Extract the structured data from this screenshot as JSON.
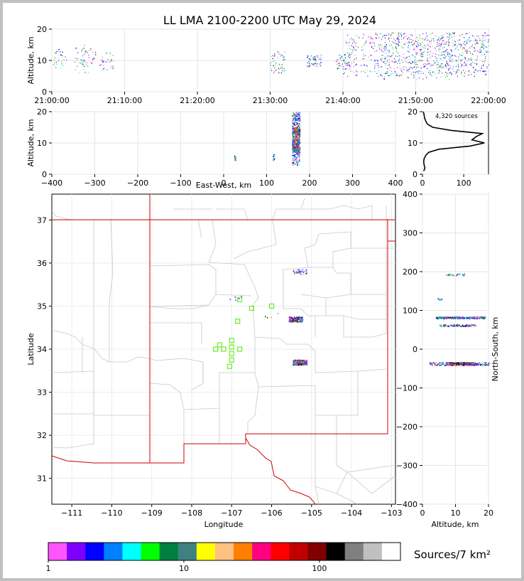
{
  "title": "LL LMA 2100-2200 UTC May 29, 2024",
  "colorbar_label": "Sources/7 km²",
  "colorbar_ticks": [
    "1",
    "10",
    "100"
  ],
  "colorbar_colors": [
    "#ff55ff",
    "#8000ff",
    "#0000ff",
    "#0080ff",
    "#00ffff",
    "#00ff00",
    "#008040",
    "#408080",
    "#ffff00",
    "#ffc080",
    "#ff8000",
    "#ff0080",
    "#ff0000",
    "#c00000",
    "#800000",
    "#000000",
    "#808080",
    "#c0c0c0",
    "#ffffff"
  ],
  "panels": {
    "time_height": {
      "ylabel": "Altitude, km",
      "yticks": [
        "0",
        "10",
        "20"
      ],
      "xticks": [
        "21:00:00",
        "21:10:00",
        "21:20:00",
        "21:30:00",
        "21:40:00",
        "21:50:00",
        "22:00:00"
      ]
    },
    "ew_height": {
      "ylabel": "Altitude, km",
      "xlabel": "East-West, km",
      "yticks": [
        "0",
        "10",
        "20"
      ],
      "xticks": [
        "−400",
        "−300",
        "−200",
        "−100",
        "0",
        "100",
        "200",
        "300",
        "400"
      ]
    },
    "histogram": {
      "annotation": "4,320 sources",
      "xticks": [
        "0",
        "100"
      ],
      "yticks": [
        "0",
        "10",
        "20"
      ]
    },
    "plan": {
      "xlabel": "Longitude",
      "ylabel": "Latitude",
      "xticks": [
        "−111",
        "−110",
        "−109",
        "−108",
        "−107",
        "−106",
        "−105",
        "−104",
        "−103"
      ],
      "yticks": [
        "31",
        "32",
        "33",
        "34",
        "35",
        "36",
        "37"
      ]
    },
    "ns_height": {
      "xlabel": "Altitude, km",
      "ylabel": "North-South, km",
      "xticks": [
        "0",
        "10",
        "20"
      ],
      "yticks": [
        "−400",
        "−300",
        "−200",
        "−100",
        "0",
        "100",
        "200",
        "300",
        "400"
      ]
    }
  },
  "chart_data": [
    {
      "type": "scatter",
      "name": "time-height",
      "x_range": [
        "21:00:00",
        "22:00:00"
      ],
      "y_range": [
        0,
        20
      ],
      "clusters": [
        {
          "t_min": 1,
          "alt_km": [
            7,
            14
          ]
        },
        {
          "t_min": 4,
          "alt_km": [
            6,
            15
          ]
        },
        {
          "t_min": 5,
          "alt_km": [
            8,
            14
          ]
        },
        {
          "t_min": 7.5,
          "alt_km": [
            7,
            13
          ]
        },
        {
          "t_min": 31,
          "alt_km": [
            6,
            13
          ]
        },
        {
          "t_min": 36,
          "alt_km": [
            8,
            12
          ]
        },
        {
          "t_min": 40,
          "alt_km": [
            7,
            12
          ]
        },
        {
          "t_min": 45,
          "alt_km": [
            5,
            19
          ]
        },
        {
          "t_min": 50,
          "alt_km": [
            4,
            19
          ]
        },
        {
          "t_min": 55,
          "alt_km": [
            6,
            19
          ]
        },
        {
          "t_min": 59,
          "alt_km": [
            5,
            19
          ]
        }
      ]
    },
    {
      "type": "scatter",
      "name": "east-west-height",
      "x_range": [
        -400,
        400
      ],
      "y_range": [
        0,
        20
      ],
      "clusters": [
        {
          "x_km": 26,
          "alt_km": [
            4.5,
            6
          ]
        },
        {
          "x_km": 116,
          "alt_km": [
            4.5,
            6.5
          ]
        },
        {
          "x_km": 168,
          "alt_km": [
            2,
            20
          ]
        }
      ]
    },
    {
      "type": "line",
      "name": "altitude-histogram",
      "x_range": [
        0,
        160
      ],
      "y_range": [
        0,
        20
      ],
      "alt_km": [
        1,
        2,
        3,
        4,
        5,
        6,
        7,
        8,
        9,
        10,
        11,
        12,
        13,
        14,
        15,
        16,
        17,
        18,
        19,
        20
      ],
      "sources": [
        3,
        6,
        4,
        3,
        4,
        8,
        15,
        40,
        115,
        150,
        120,
        130,
        145,
        70,
        25,
        12,
        8,
        5,
        4,
        2
      ]
    },
    {
      "type": "scatter",
      "name": "plan-view",
      "lon_range": [
        -111.5,
        -102.9
      ],
      "lat_range": [
        30.4,
        37.6
      ],
      "storm_clusters": [
        {
          "lon": -105.3,
          "lat": 35.8
        },
        {
          "lon": -105.4,
          "lat": 34.7
        },
        {
          "lon": -105.3,
          "lat": 33.7
        },
        {
          "lon": -106.9,
          "lat": 35.2
        },
        {
          "lon": -106.0,
          "lat": 34.8
        }
      ],
      "stations": [
        {
          "lon": -106.8,
          "lat": 35.15
        },
        {
          "lon": -106.5,
          "lat": 34.95
        },
        {
          "lon": -106.0,
          "lat": 35.0
        },
        {
          "lon": -106.85,
          "lat": 34.65
        },
        {
          "lon": -107.0,
          "lat": 34.2
        },
        {
          "lon": -107.3,
          "lat": 34.1
        },
        {
          "lon": -107.4,
          "lat": 34.0
        },
        {
          "lon": -107.2,
          "lat": 34.0
        },
        {
          "lon": -107.0,
          "lat": 34.05
        },
        {
          "lon": -106.8,
          "lat": 34.0
        },
        {
          "lon": -107.0,
          "lat": 33.9
        },
        {
          "lon": -107.0,
          "lat": 33.75
        },
        {
          "lon": -107.05,
          "lat": 33.6
        }
      ]
    },
    {
      "type": "scatter",
      "name": "north-south-height",
      "x_range": [
        0,
        20
      ],
      "y_range": [
        -400,
        400
      ],
      "clusters": [
        {
          "y_km": 193,
          "alt_km": [
            7,
            13
          ]
        },
        {
          "y_km": 130,
          "alt_km": [
            4.5,
            6
          ]
        },
        {
          "y_km": 82,
          "alt_km": [
            4,
            19
          ]
        },
        {
          "y_km": 62,
          "alt_km": [
            5,
            16
          ]
        },
        {
          "y_km": -37,
          "alt_km": [
            2,
            20
          ]
        }
      ]
    }
  ]
}
